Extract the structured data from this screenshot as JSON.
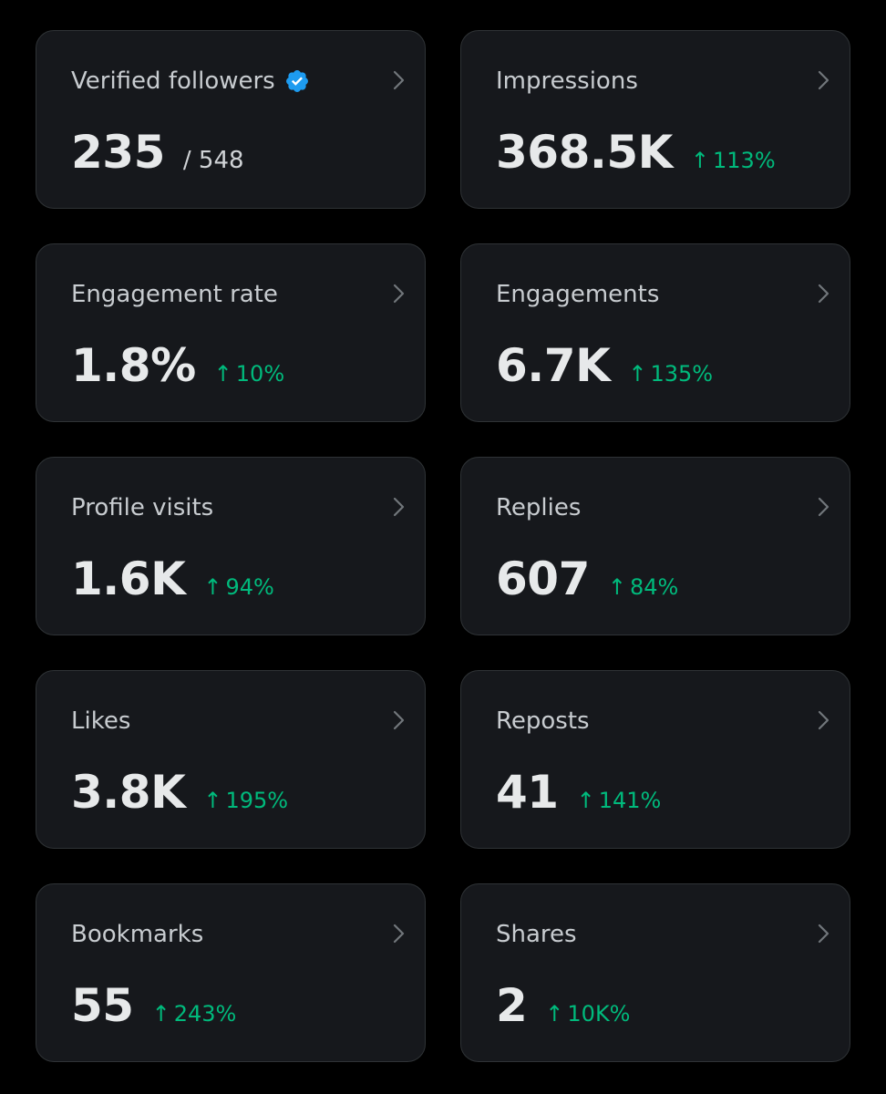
{
  "colors": {
    "background": "#000000",
    "card": "#16181c",
    "card_border": "#2f3336",
    "title": "#c8ccd0",
    "value": "#e7e9ea",
    "positive": "#00ba7c",
    "verified_badge": "#1d9bf0"
  },
  "cards": [
    {
      "title": "Verified followers",
      "value": "235",
      "total": "/ 548",
      "verified_icon": "verified-badge-icon"
    },
    {
      "title": "Impressions",
      "value": "368.5K",
      "change": "113%",
      "arrow": "↑"
    },
    {
      "title": "Engagement rate",
      "value": "1.8%",
      "change": "10%",
      "arrow": "↑"
    },
    {
      "title": "Engagements",
      "value": "6.7K",
      "change": "135%",
      "arrow": "↑"
    },
    {
      "title": "Profile visits",
      "value": "1.6K",
      "change": "94%",
      "arrow": "↑"
    },
    {
      "title": "Replies",
      "value": "607",
      "change": "84%",
      "arrow": "↑"
    },
    {
      "title": "Likes",
      "value": "3.8K",
      "change": "195%",
      "arrow": "↑"
    },
    {
      "title": "Reposts",
      "value": "41",
      "change": "141%",
      "arrow": "↑"
    },
    {
      "title": "Bookmarks",
      "value": "55",
      "change": "243%",
      "arrow": "↑"
    },
    {
      "title": "Shares",
      "value": "2",
      "change": "10K%",
      "arrow": "↑"
    }
  ]
}
